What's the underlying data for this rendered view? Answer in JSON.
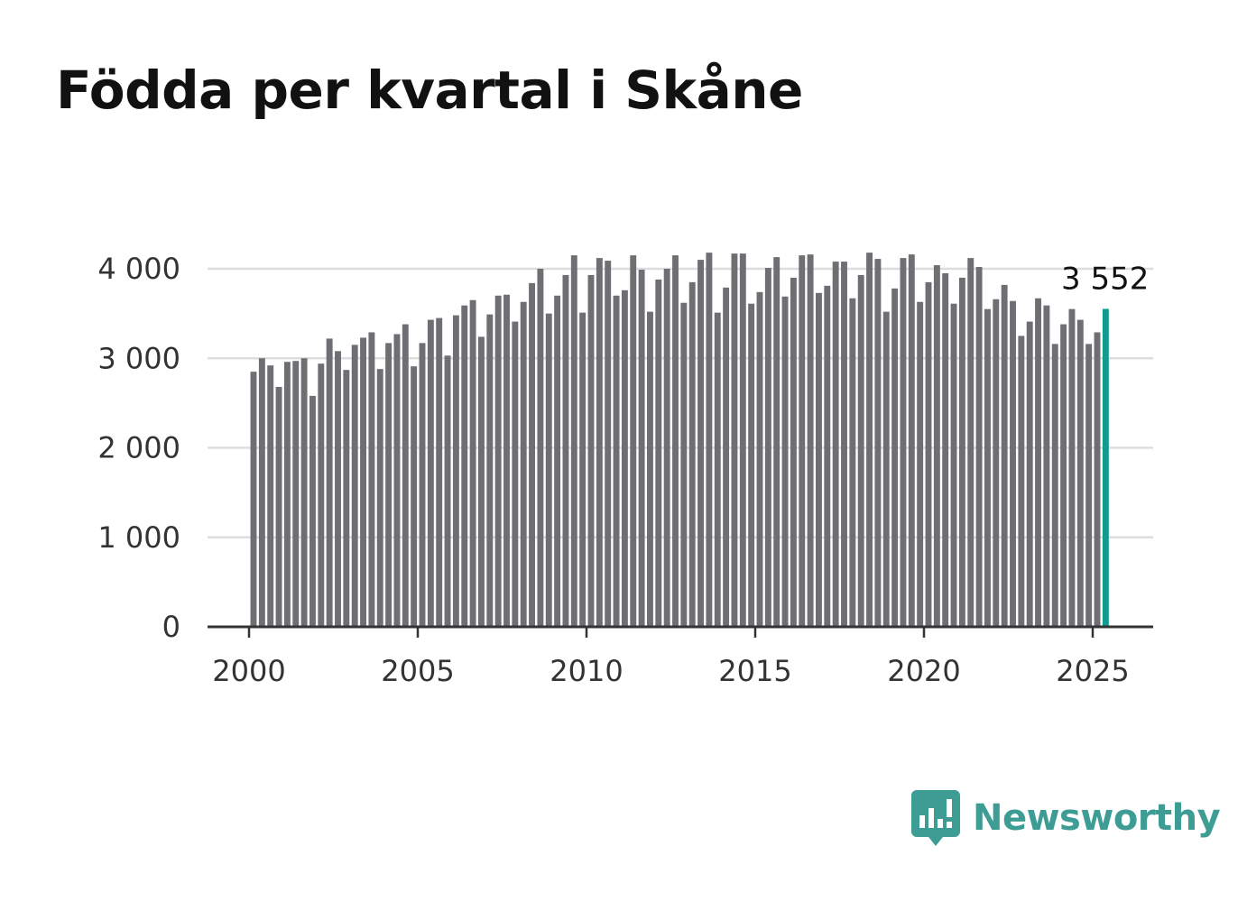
{
  "title": "Födda per kvartal i Skåne",
  "brand": {
    "name": "Newsworthy",
    "color": "#3d9c94",
    "icon": "newsworthy-logo-icon"
  },
  "colors": {
    "bar": "#6e6e73",
    "highlight": "#0f9b8e",
    "grid": "#dddddd",
    "axis": "#333333"
  },
  "chart_data": {
    "type": "bar",
    "title": "Födda per kvartal i Skåne",
    "xlabel": "",
    "ylabel": "",
    "x_ticks": [
      "2000",
      "2005",
      "2010",
      "2015",
      "2020",
      "2025"
    ],
    "x_range": [
      1999.75,
      2026.5
    ],
    "y_ticks": [
      0,
      1000,
      2000,
      3000,
      4000
    ],
    "y_tick_labels": [
      "0",
      "1 000",
      "2 000",
      "3 000",
      "4 000"
    ],
    "ylim": [
      0,
      4000
    ],
    "grid": true,
    "legend": "none",
    "highlight": {
      "index": 101,
      "label": "3 552"
    },
    "start_year": 2000,
    "periods_per_year": 4,
    "values": [
      2850,
      3000,
      2920,
      2680,
      2960,
      2970,
      3000,
      2580,
      2940,
      3220,
      3080,
      2870,
      3150,
      3230,
      3290,
      2880,
      3170,
      3270,
      3380,
      2910,
      3170,
      3430,
      3450,
      3030,
      3480,
      3590,
      3650,
      3240,
      3490,
      3700,
      3710,
      3410,
      3630,
      3840,
      4000,
      3500,
      3700,
      3930,
      4150,
      3510,
      3930,
      4120,
      4090,
      3700,
      3760,
      4150,
      3990,
      3520,
      3880,
      4000,
      4150,
      3620,
      3850,
      4100,
      4180,
      3510,
      3790,
      4170,
      4170,
      3610,
      3740,
      4010,
      4130,
      3690,
      3900,
      4150,
      4160,
      3730,
      3810,
      4080,
      4080,
      3670,
      3930,
      4180,
      4110,
      3520,
      3780,
      4120,
      4160,
      3630,
      3850,
      4040,
      3950,
      3610,
      3900,
      4120,
      4020,
      3550,
      3660,
      3820,
      3640,
      3250,
      3410,
      3670,
      3590,
      3160,
      3380,
      3550,
      3430,
      3160,
      3290,
      3552
    ]
  }
}
